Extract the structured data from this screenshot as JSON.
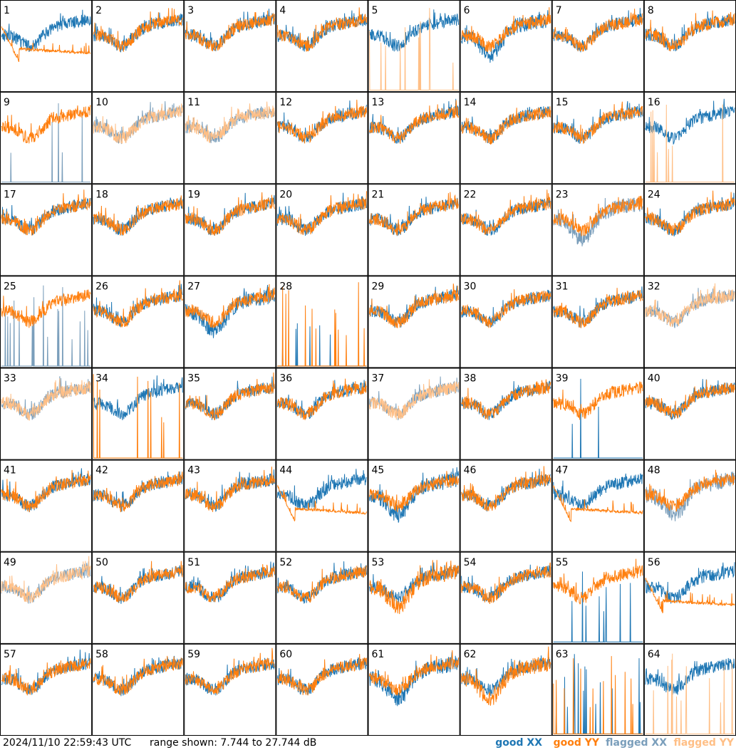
{
  "footer": {
    "timestamp": "2024/11/10 22:59:43 UTC",
    "range_text": "range shown: 7.744 to 27.744 dB"
  },
  "legend": [
    {
      "prefix": "good",
      "pol": "XX",
      "color": "#1f77b4"
    },
    {
      "prefix": "good",
      "pol": "YY",
      "color": "#ff7f0e"
    },
    {
      "prefix": "flagged",
      "pol": "XX",
      "color": "#7a9ebb"
    },
    {
      "prefix": "flagged",
      "pol": "YY",
      "color": "#ffbf86"
    }
  ],
  "chart_data": {
    "type": "line",
    "grid": "8x8 small multiples",
    "ylim": [
      7.744,
      27.744
    ],
    "y_unit": "dB",
    "panels": [
      {
        "id": 1,
        "label": "1",
        "xx": "good",
        "yy": "good",
        "xx_shape": "bowl",
        "yy_shape": "flat"
      },
      {
        "id": 2,
        "label": "2",
        "xx": "good",
        "yy": "good",
        "xx_shape": "bowl",
        "yy_shape": "bowl"
      },
      {
        "id": 3,
        "label": "3",
        "xx": "good",
        "yy": "good",
        "xx_shape": "bowl",
        "yy_shape": "bowl"
      },
      {
        "id": 4,
        "label": "4",
        "xx": "good",
        "yy": "good",
        "xx_shape": "bowl",
        "yy_shape": "bowl"
      },
      {
        "id": 5,
        "label": "5",
        "xx": "good",
        "yy": "flagged",
        "xx_shape": "bowl",
        "yy_shape": "spikes"
      },
      {
        "id": 6,
        "label": "6",
        "xx": "good",
        "yy": "good",
        "xx_shape": "deep",
        "yy_shape": "bowl"
      },
      {
        "id": 7,
        "label": "7",
        "xx": "good",
        "yy": "good",
        "xx_shape": "bowl",
        "yy_shape": "bowl"
      },
      {
        "id": 8,
        "label": "8",
        "xx": "good",
        "yy": "good",
        "xx_shape": "bowl",
        "yy_shape": "bowl"
      },
      {
        "id": 9,
        "label": "9",
        "xx": "flagged",
        "yy": "good",
        "xx_shape": "spikes",
        "yy_shape": "bowl"
      },
      {
        "id": 10,
        "label": "10",
        "xx": "flagged",
        "yy": "flagged",
        "xx_shape": "bowl",
        "yy_shape": "bowl"
      },
      {
        "id": 11,
        "label": "11",
        "xx": "flagged",
        "yy": "flagged",
        "xx_shape": "bowl",
        "yy_shape": "bowl"
      },
      {
        "id": 12,
        "label": "12",
        "xx": "good",
        "yy": "good",
        "xx_shape": "bowl",
        "yy_shape": "bowl"
      },
      {
        "id": 13,
        "label": "13",
        "xx": "good",
        "yy": "good",
        "xx_shape": "bowl",
        "yy_shape": "bowl"
      },
      {
        "id": 14,
        "label": "14",
        "xx": "good",
        "yy": "good",
        "xx_shape": "bowl",
        "yy_shape": "bowl"
      },
      {
        "id": 15,
        "label": "15",
        "xx": "good",
        "yy": "good",
        "xx_shape": "bowl",
        "yy_shape": "bowl"
      },
      {
        "id": 16,
        "label": "16",
        "xx": "good",
        "yy": "flagged",
        "xx_shape": "bowl",
        "yy_shape": "spikes"
      },
      {
        "id": 17,
        "label": "17",
        "xx": "good",
        "yy": "good",
        "xx_shape": "bowl",
        "yy_shape": "bowl"
      },
      {
        "id": 18,
        "label": "18",
        "xx": "good",
        "yy": "good",
        "xx_shape": "bowl",
        "yy_shape": "bowl"
      },
      {
        "id": 19,
        "label": "19",
        "xx": "good",
        "yy": "good",
        "xx_shape": "bowl",
        "yy_shape": "bowl"
      },
      {
        "id": 20,
        "label": "20",
        "xx": "good",
        "yy": "good",
        "xx_shape": "bowl",
        "yy_shape": "bowl"
      },
      {
        "id": 21,
        "label": "21",
        "xx": "good",
        "yy": "good",
        "xx_shape": "bowl",
        "yy_shape": "bowl"
      },
      {
        "id": 22,
        "label": "22",
        "xx": "good",
        "yy": "good",
        "xx_shape": "bowl",
        "yy_shape": "bowl"
      },
      {
        "id": 23,
        "label": "23",
        "xx": "flagged",
        "yy": "good",
        "xx_shape": "deep",
        "yy_shape": "bowl"
      },
      {
        "id": 24,
        "label": "24",
        "xx": "good",
        "yy": "good",
        "xx_shape": "bowl",
        "yy_shape": "bowl"
      },
      {
        "id": 25,
        "label": "25",
        "xx": "flagged",
        "yy": "good",
        "xx_shape": "spikes",
        "yy_shape": "bowl"
      },
      {
        "id": 26,
        "label": "26",
        "xx": "good",
        "yy": "good",
        "xx_shape": "bowl",
        "yy_shape": "bowl"
      },
      {
        "id": 27,
        "label": "27",
        "xx": "good",
        "yy": "good",
        "xx_shape": "deep",
        "yy_shape": "bowl"
      },
      {
        "id": 28,
        "label": "28",
        "xx": "good",
        "yy": "good",
        "xx_shape": "spikes",
        "yy_shape": "spikes"
      },
      {
        "id": 29,
        "label": "29",
        "xx": "good",
        "yy": "good",
        "xx_shape": "bowl",
        "yy_shape": "bowl"
      },
      {
        "id": 30,
        "label": "30",
        "xx": "good",
        "yy": "good",
        "xx_shape": "bowl",
        "yy_shape": "bowl"
      },
      {
        "id": 31,
        "label": "31",
        "xx": "good",
        "yy": "good",
        "xx_shape": "bowl",
        "yy_shape": "bowl"
      },
      {
        "id": 32,
        "label": "32",
        "xx": "flagged",
        "yy": "flagged",
        "xx_shape": "bowl",
        "yy_shape": "bowl"
      },
      {
        "id": 33,
        "label": "33",
        "xx": "flagged",
        "yy": "flagged",
        "xx_shape": "bowl",
        "yy_shape": "bowl"
      },
      {
        "id": 34,
        "label": "34",
        "xx": "good",
        "yy": "good",
        "xx_shape": "bowl",
        "yy_shape": "spikes"
      },
      {
        "id": 35,
        "label": "35",
        "xx": "good",
        "yy": "good",
        "xx_shape": "bowl",
        "yy_shape": "bowl"
      },
      {
        "id": 36,
        "label": "36",
        "xx": "good",
        "yy": "good",
        "xx_shape": "bowl",
        "yy_shape": "bowl"
      },
      {
        "id": 37,
        "label": "37",
        "xx": "flagged",
        "yy": "flagged",
        "xx_shape": "bowl",
        "yy_shape": "bowl"
      },
      {
        "id": 38,
        "label": "38",
        "xx": "good",
        "yy": "good",
        "xx_shape": "bowl",
        "yy_shape": "bowl"
      },
      {
        "id": 39,
        "label": "39",
        "xx": "good",
        "yy": "good",
        "xx_shape": "spikes",
        "yy_shape": "bowl"
      },
      {
        "id": 40,
        "label": "40",
        "xx": "good",
        "yy": "good",
        "xx_shape": "bowl",
        "yy_shape": "bowl"
      },
      {
        "id": 41,
        "label": "41",
        "xx": "good",
        "yy": "good",
        "xx_shape": "bowl",
        "yy_shape": "bowl"
      },
      {
        "id": 42,
        "label": "42",
        "xx": "good",
        "yy": "good",
        "xx_shape": "bowl",
        "yy_shape": "bowl"
      },
      {
        "id": 43,
        "label": "43",
        "xx": "good",
        "yy": "good",
        "xx_shape": "bowl",
        "yy_shape": "bowl"
      },
      {
        "id": 44,
        "label": "44",
        "xx": "good",
        "yy": "good",
        "xx_shape": "bowl",
        "yy_shape": "flat"
      },
      {
        "id": 45,
        "label": "45",
        "xx": "good",
        "yy": "good",
        "xx_shape": "deep",
        "yy_shape": "bowl"
      },
      {
        "id": 46,
        "label": "46",
        "xx": "good",
        "yy": "good",
        "xx_shape": "bowl",
        "yy_shape": "bowl"
      },
      {
        "id": 47,
        "label": "47",
        "xx": "good",
        "yy": "good",
        "xx_shape": "bowl",
        "yy_shape": "flat"
      },
      {
        "id": 48,
        "label": "48",
        "xx": "flagged",
        "yy": "good",
        "xx_shape": "deep",
        "yy_shape": "bowl"
      },
      {
        "id": 49,
        "label": "49",
        "xx": "flagged",
        "yy": "flagged",
        "xx_shape": "bowl",
        "yy_shape": "bowl"
      },
      {
        "id": 50,
        "label": "50",
        "xx": "good",
        "yy": "good",
        "xx_shape": "bowl",
        "yy_shape": "bowl"
      },
      {
        "id": 51,
        "label": "51",
        "xx": "good",
        "yy": "good",
        "xx_shape": "bowl",
        "yy_shape": "bowl"
      },
      {
        "id": 52,
        "label": "52",
        "xx": "good",
        "yy": "good",
        "xx_shape": "bowl",
        "yy_shape": "bowl"
      },
      {
        "id": 53,
        "label": "53",
        "xx": "good",
        "yy": "good",
        "xx_shape": "bowl",
        "yy_shape": "deep"
      },
      {
        "id": 54,
        "label": "54",
        "xx": "good",
        "yy": "good",
        "xx_shape": "bowl",
        "yy_shape": "bowl"
      },
      {
        "id": 55,
        "label": "55",
        "xx": "good",
        "yy": "good",
        "xx_shape": "spikes",
        "yy_shape": "bowl"
      },
      {
        "id": 56,
        "label": "56",
        "xx": "good",
        "yy": "good",
        "xx_shape": "bowl",
        "yy_shape": "flat"
      },
      {
        "id": 57,
        "label": "57",
        "xx": "good",
        "yy": "good",
        "xx_shape": "bowl",
        "yy_shape": "bowl"
      },
      {
        "id": 58,
        "label": "58",
        "xx": "good",
        "yy": "good",
        "xx_shape": "bowl",
        "yy_shape": "bowl"
      },
      {
        "id": 59,
        "label": "59",
        "xx": "good",
        "yy": "good",
        "xx_shape": "bowl",
        "yy_shape": "bowl"
      },
      {
        "id": 60,
        "label": "60",
        "xx": "good",
        "yy": "good",
        "xx_shape": "bowl",
        "yy_shape": "bowl"
      },
      {
        "id": 61,
        "label": "61",
        "xx": "good",
        "yy": "good",
        "xx_shape": "deep",
        "yy_shape": "bowl"
      },
      {
        "id": 62,
        "label": "62",
        "xx": "good",
        "yy": "good",
        "xx_shape": "bowl",
        "yy_shape": "deep"
      },
      {
        "id": 63,
        "label": "63",
        "xx": "good",
        "yy": "good",
        "xx_shape": "spikes",
        "yy_shape": "spikes"
      },
      {
        "id": 64,
        "label": "64",
        "xx": "good",
        "yy": "flagged",
        "xx_shape": "bowl",
        "yy_shape": "spikes"
      }
    ]
  }
}
